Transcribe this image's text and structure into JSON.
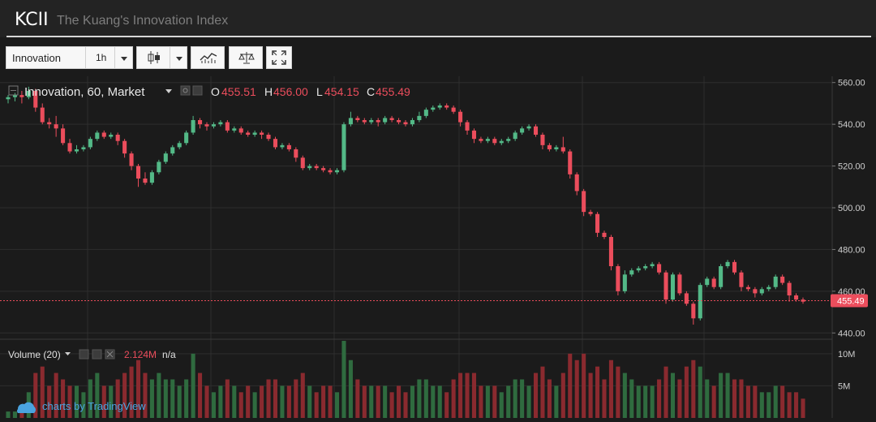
{
  "header": {
    "ticker": "KCII",
    "full_name": "The Kuang's Innovation Index"
  },
  "toolbar": {
    "symbol": "Innovation",
    "interval": "1h"
  },
  "legend": {
    "title": "Innovation, 60, Market",
    "o_label": "O",
    "o_value": "455.51",
    "h_label": "H",
    "h_value": "456.00",
    "l_label": "L",
    "l_value": "454.15",
    "c_label": "C",
    "c_value": "455.49"
  },
  "volume_legend": {
    "label": "Volume (20)",
    "value": "2.124M",
    "na": "n/a"
  },
  "watermark": "charts by TradingView",
  "colors": {
    "up": "#53b987",
    "down": "#eb4d5c",
    "bg": "#1b1b1b",
    "grid": "#2e2e2e",
    "axis_text": "#cfcfcf",
    "price_label_bg": "#eb4d5c"
  },
  "chart_data": {
    "type": "candlestick",
    "price_axis": {
      "ticks": [
        "560.00",
        "540.00",
        "520.00",
        "500.00",
        "480.00",
        "460.00",
        "440.00"
      ],
      "ylim": [
        437,
        563
      ]
    },
    "volume_axis": {
      "ticks": [
        "10M",
        "5M"
      ],
      "ylim": [
        0,
        12
      ]
    },
    "last_price": "455.49",
    "candles": [
      [
        552,
        553,
        550,
        554,
        1
      ],
      [
        553,
        554,
        551,
        555,
        1
      ],
      [
        554,
        553,
        550,
        556,
        1
      ],
      [
        553,
        556,
        552,
        558,
        4
      ],
      [
        556,
        548,
        546,
        557,
        7
      ],
      [
        548,
        541,
        540,
        550,
        8
      ],
      [
        541,
        540,
        538,
        543,
        5
      ],
      [
        540,
        538,
        534,
        544,
        7
      ],
      [
        538,
        531,
        530,
        540,
        6
      ],
      [
        531,
        527,
        526,
        533,
        5
      ],
      [
        527,
        528,
        526,
        530,
        5
      ],
      [
        528,
        529,
        527,
        530,
        4
      ],
      [
        529,
        533,
        528,
        534,
        6
      ],
      [
        533,
        536,
        532,
        537,
        7
      ],
      [
        536,
        534,
        533,
        537,
        5
      ],
      [
        534,
        535,
        533,
        536,
        5
      ],
      [
        535,
        532,
        530,
        536,
        6
      ],
      [
        532,
        526,
        524,
        533,
        7
      ],
      [
        526,
        520,
        518,
        527,
        8
      ],
      [
        520,
        514,
        510,
        521,
        9
      ],
      [
        514,
        512,
        511,
        517,
        7
      ],
      [
        512,
        517,
        511,
        518,
        6
      ],
      [
        517,
        522,
        516,
        523,
        7
      ],
      [
        522,
        526,
        521,
        527,
        6
      ],
      [
        526,
        529,
        525,
        530,
        6
      ],
      [
        529,
        531,
        528,
        532,
        5
      ],
      [
        531,
        536,
        530,
        537,
        6
      ],
      [
        536,
        542,
        535,
        544,
        10
      ],
      [
        542,
        540,
        538,
        543,
        7
      ],
      [
        540,
        539,
        537,
        541,
        5
      ],
      [
        539,
        540,
        538,
        541,
        4
      ],
      [
        540,
        541,
        539,
        542,
        5
      ],
      [
        541,
        537,
        536,
        542,
        6
      ],
      [
        537,
        538,
        536,
        539,
        5
      ],
      [
        538,
        536,
        535,
        539,
        4
      ],
      [
        536,
        535,
        534,
        537,
        5
      ],
      [
        535,
        536,
        534,
        537,
        4
      ],
      [
        536,
        535,
        533,
        537,
        5
      ],
      [
        535,
        533,
        532,
        536,
        6
      ],
      [
        533,
        529,
        528,
        534,
        6
      ],
      [
        529,
        530,
        528,
        531,
        5
      ],
      [
        530,
        528,
        527,
        531,
        5
      ],
      [
        528,
        524,
        522,
        529,
        6
      ],
      [
        524,
        519,
        518,
        525,
        7
      ],
      [
        519,
        520,
        518,
        521,
        5
      ],
      [
        520,
        519,
        518,
        521,
        4
      ],
      [
        519,
        518,
        517,
        520,
        5
      ],
      [
        518,
        517,
        516,
        519,
        5
      ],
      [
        517,
        518,
        516,
        519,
        4
      ],
      [
        518,
        540,
        517,
        541,
        12
      ],
      [
        540,
        543,
        539,
        546,
        9
      ],
      [
        543,
        542,
        541,
        544,
        6
      ],
      [
        542,
        541,
        540,
        543,
        5
      ],
      [
        541,
        542,
        540,
        543,
        5
      ],
      [
        542,
        541,
        539,
        543,
        5
      ],
      [
        541,
        543,
        540,
        544,
        5
      ],
      [
        543,
        542,
        541,
        544,
        4
      ],
      [
        542,
        541,
        540,
        543,
        5
      ],
      [
        541,
        540,
        539,
        542,
        4
      ],
      [
        540,
        542,
        539,
        543,
        5
      ],
      [
        542,
        544,
        541,
        546,
        6
      ],
      [
        544,
        547,
        543,
        548,
        6
      ],
      [
        547,
        548,
        546,
        549,
        5
      ],
      [
        548,
        549,
        547,
        550,
        5
      ],
      [
        549,
        548,
        547,
        550,
        4
      ],
      [
        548,
        546,
        545,
        549,
        6
      ],
      [
        546,
        541,
        539,
        547,
        7
      ],
      [
        541,
        537,
        535,
        542,
        7
      ],
      [
        537,
        533,
        531,
        538,
        7
      ],
      [
        533,
        532,
        531,
        534,
        5
      ],
      [
        532,
        533,
        531,
        534,
        5
      ],
      [
        533,
        531,
        530,
        534,
        5
      ],
      [
        531,
        532,
        530,
        533,
        4
      ],
      [
        532,
        533,
        531,
        534,
        5
      ],
      [
        533,
        536,
        532,
        537,
        6
      ],
      [
        536,
        538,
        535,
        539,
        6
      ],
      [
        538,
        539,
        537,
        540,
        5
      ],
      [
        539,
        535,
        534,
        540,
        7
      ],
      [
        535,
        530,
        528,
        536,
        8
      ],
      [
        530,
        528,
        527,
        531,
        6
      ],
      [
        528,
        529,
        527,
        530,
        5
      ],
      [
        529,
        527,
        526,
        534,
        7
      ],
      [
        527,
        516,
        514,
        528,
        10
      ],
      [
        516,
        508,
        506,
        517,
        9
      ],
      [
        508,
        498,
        496,
        509,
        10
      ],
      [
        498,
        497,
        496,
        499,
        7
      ],
      [
        497,
        488,
        486,
        498,
        8
      ],
      [
        488,
        486,
        485,
        489,
        6
      ],
      [
        486,
        472,
        470,
        487,
        9
      ],
      [
        472,
        460,
        458,
        473,
        8
      ],
      [
        460,
        468,
        459,
        470,
        7
      ],
      [
        468,
        470,
        467,
        471,
        6
      ],
      [
        470,
        471,
        469,
        472,
        5
      ],
      [
        471,
        472,
        470,
        473,
        5
      ],
      [
        472,
        473,
        471,
        474,
        5
      ],
      [
        473,
        469,
        468,
        474,
        6
      ],
      [
        469,
        456,
        454,
        470,
        8
      ],
      [
        456,
        468,
        455,
        469,
        7
      ],
      [
        468,
        459,
        458,
        469,
        6
      ],
      [
        459,
        454,
        453,
        460,
        8
      ],
      [
        454,
        447,
        444,
        455,
        9
      ],
      [
        447,
        463,
        446,
        464,
        8
      ],
      [
        463,
        466,
        462,
        467,
        6
      ],
      [
        466,
        462,
        461,
        467,
        5
      ],
      [
        462,
        472,
        461,
        473,
        7
      ],
      [
        472,
        474,
        471,
        475,
        7
      ],
      [
        474,
        469,
        468,
        475,
        6
      ],
      [
        469,
        462,
        460,
        470,
        6
      ],
      [
        462,
        461,
        460,
        463,
        5
      ],
      [
        461,
        459,
        457,
        462,
        5
      ],
      [
        459,
        461,
        458,
        462,
        4
      ],
      [
        461,
        462,
        460,
        463,
        4
      ],
      [
        462,
        467,
        461,
        468,
        5
      ],
      [
        467,
        464,
        463,
        468,
        5
      ],
      [
        464,
        458,
        455,
        465,
        4
      ],
      [
        458,
        456,
        455,
        459,
        4
      ],
      [
        456,
        455,
        454,
        457,
        3
      ]
    ]
  }
}
